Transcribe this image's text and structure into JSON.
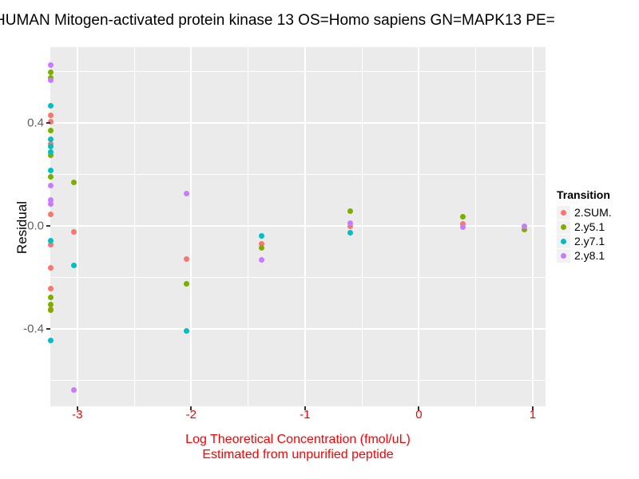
{
  "chart_data": {
    "type": "scatter",
    "title": "HUMAN Mitogen-activated protein kinase 13 OS=Homo sapiens GN=MAPK13 PE=",
    "xlabel_line1": "Log Theoretical Concentration (fmol/uL)",
    "xlabel_line2": "Estimated from unpurified peptide",
    "ylabel": "Residual",
    "xlim": [
      -3.237,
      1.113
    ],
    "ylim": [
      -0.7007,
      0.6946
    ],
    "grid": "on",
    "panel_background": "#EBEBEB",
    "x_axis_color": "#FF0000",
    "x_ticks": [
      {
        "v": -3,
        "label": "-3"
      },
      {
        "v": -2,
        "label": "-2"
      },
      {
        "v": -1,
        "label": "-1"
      },
      {
        "v": 0,
        "label": "0"
      },
      {
        "v": 1,
        "label": "1"
      }
    ],
    "y_ticks": [
      {
        "v": 0.4,
        "label": "0.4"
      },
      {
        "v": 0.0,
        "label": "0.0"
      },
      {
        "v": -0.4,
        "label": "-0.4"
      }
    ],
    "x_minor": [
      -2.5,
      -1.5,
      -0.5,
      0.5
    ],
    "y_minor": [
      0.6,
      0.2,
      -0.2,
      -0.6
    ],
    "legend": {
      "title": "Transition",
      "position": "right",
      "items": [
        {
          "label": "2.SUM.",
          "color": "#F8766D"
        },
        {
          "label": "2.y5.1",
          "color": "#7CAE00"
        },
        {
          "label": "2.y7.1",
          "color": "#00BFC4"
        },
        {
          "label": "2.y8.1",
          "color": "#C77CFF"
        }
      ]
    },
    "series": [
      {
        "name": "2.SUM.",
        "color": "#F8766D",
        "points": [
          [
            -3.235,
            0.43
          ],
          [
            -3.235,
            0.404
          ],
          [
            -3.235,
            0.319
          ],
          [
            -3.235,
            0.046
          ],
          [
            -3.235,
            -0.074
          ],
          [
            -3.235,
            -0.163
          ],
          [
            -3.235,
            -0.242
          ],
          [
            -3.235,
            -0.325
          ],
          [
            -3.03,
            -0.022
          ],
          [
            -2.04,
            -0.13
          ],
          [
            -1.38,
            -0.07
          ],
          [
            -0.6,
            -0.003
          ],
          [
            0.385,
            0.009
          ]
        ]
      },
      {
        "name": "2.y5.1",
        "color": "#7CAE00",
        "points": [
          [
            -3.235,
            0.597
          ],
          [
            -3.235,
            0.575
          ],
          [
            -3.235,
            0.371
          ],
          [
            -3.235,
            0.273
          ],
          [
            -3.235,
            0.192
          ],
          [
            -3.235,
            -0.278
          ],
          [
            -3.235,
            -0.306
          ],
          [
            -3.235,
            -0.326
          ],
          [
            -3.03,
            0.17
          ],
          [
            -2.04,
            -0.226
          ],
          [
            -1.38,
            -0.085
          ],
          [
            -0.6,
            0.056
          ],
          [
            0.385,
            0.037
          ],
          [
            0.93,
            -0.015
          ]
        ]
      },
      {
        "name": "2.y7.1",
        "color": "#00BFC4",
        "points": [
          [
            -3.235,
            0.466
          ],
          [
            -3.235,
            0.335
          ],
          [
            -3.235,
            0.31
          ],
          [
            -3.235,
            0.288
          ],
          [
            -3.235,
            0.216
          ],
          [
            -3.235,
            -0.056
          ],
          [
            -3.235,
            -0.446
          ],
          [
            -3.03,
            -0.154
          ],
          [
            -2.04,
            -0.407
          ],
          [
            -1.38,
            -0.038
          ],
          [
            -0.6,
            -0.025
          ]
        ]
      },
      {
        "name": "2.y8.1",
        "color": "#C77CFF",
        "points": [
          [
            -3.235,
            0.626
          ],
          [
            -3.235,
            0.567
          ],
          [
            -3.235,
            0.156
          ],
          [
            -3.235,
            0.102
          ],
          [
            -3.235,
            0.084
          ],
          [
            -3.03,
            -0.637
          ],
          [
            -2.04,
            0.125
          ],
          [
            -1.38,
            -0.132
          ],
          [
            -0.6,
            0.012
          ],
          [
            0.385,
            -0.006
          ],
          [
            0.93,
            0.0
          ]
        ]
      }
    ]
  }
}
